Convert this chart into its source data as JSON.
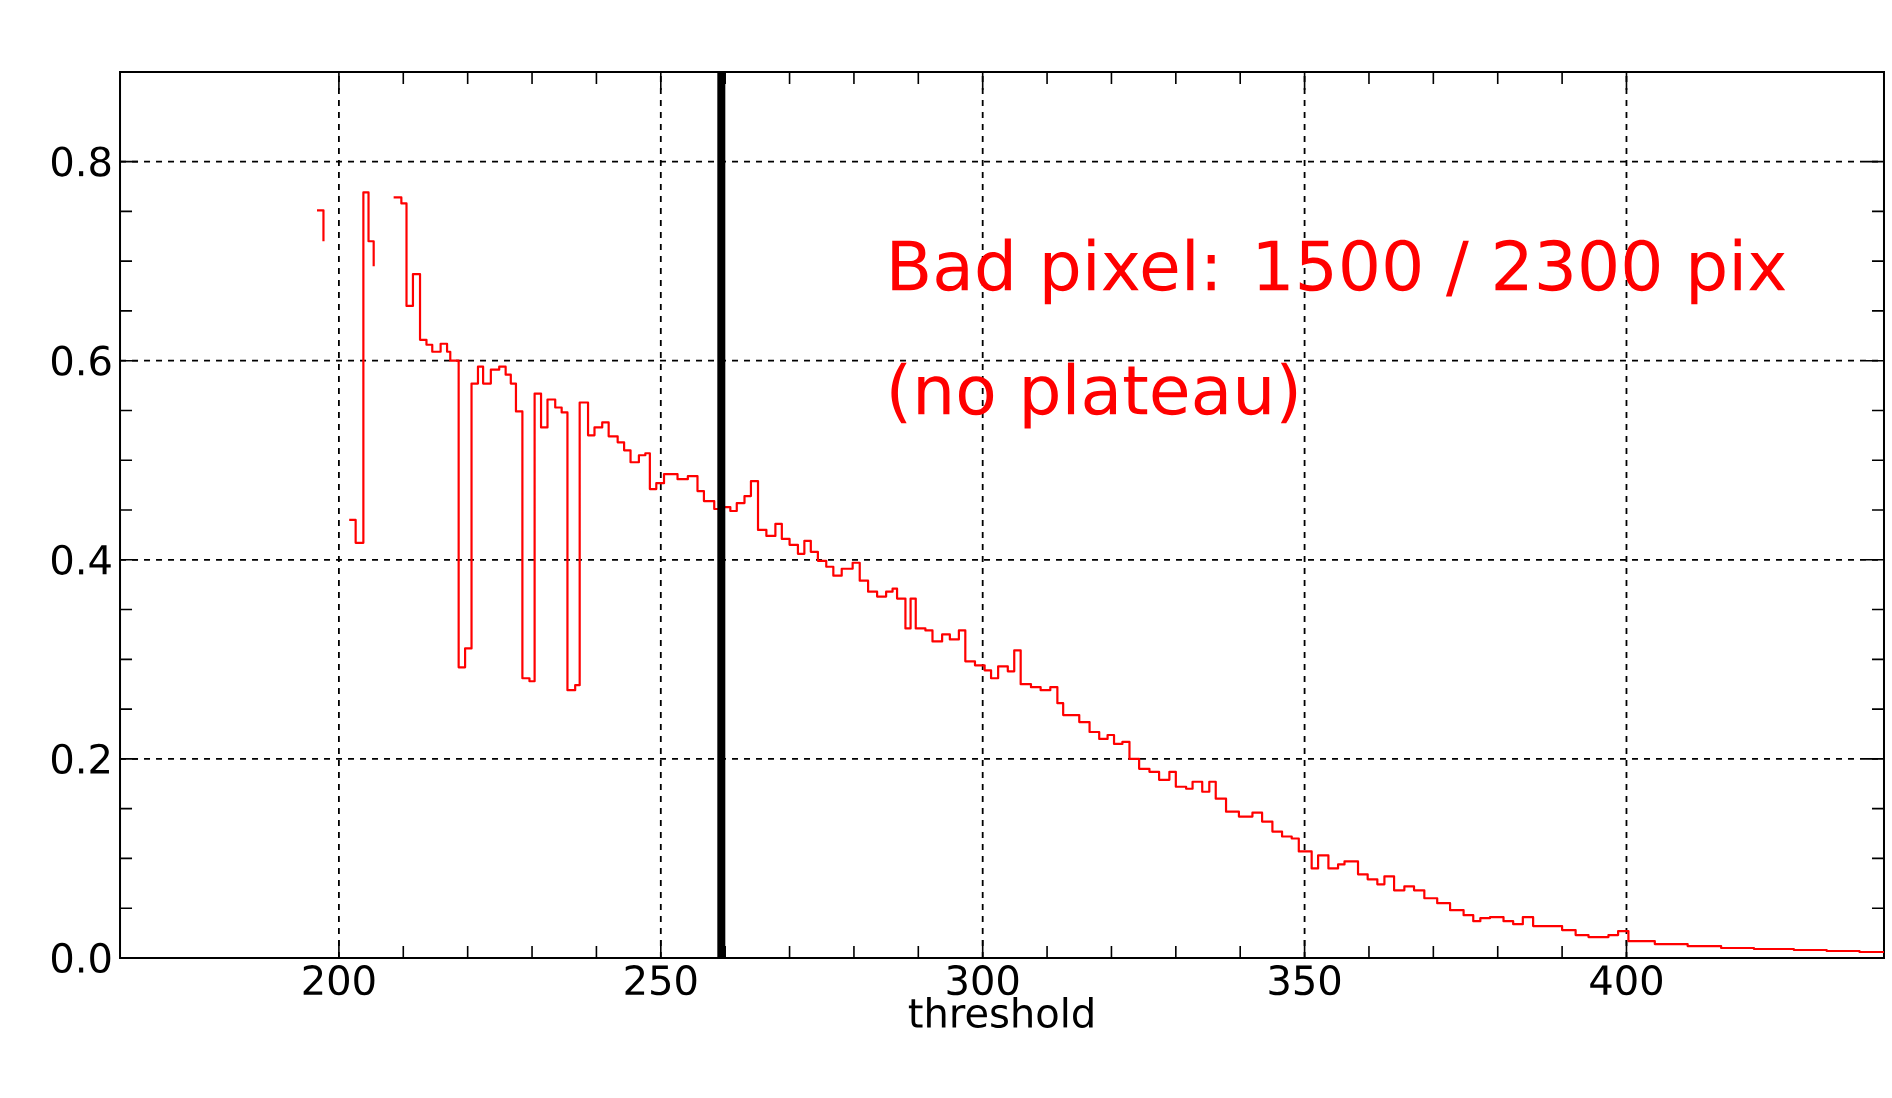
{
  "chart_data": {
    "type": "step",
    "xlabel": "threshold",
    "annotations": [
      "Bad pixel: 1500 / 2300 pix",
      "(no plateau)"
    ],
    "xlim": [
      166,
      440
    ],
    "xticks": [
      200,
      250,
      300,
      350,
      400
    ],
    "ylim": [
      0,
      0.89
    ],
    "yticks": [
      {
        "value": 0,
        "label": "0.0"
      },
      {
        "value": 0.2,
        "label": "0.2"
      },
      {
        "value": 0.4,
        "label": "0.4"
      },
      {
        "value": 0.6,
        "label": "0.6"
      },
      {
        "value": 0.8,
        "label": "0.8"
      }
    ],
    "grid": true,
    "legend": false,
    "ref_lines": [
      {
        "axis": "x",
        "value": 259.4,
        "color": "#000000"
      }
    ],
    "series": [
      {
        "color": "#ff0000",
        "x": [
          196.6,
          197.6,
          198.9,
          201.6,
          202.6,
          203.8,
          204.6,
          205.4,
          206.8,
          208.5,
          209.7,
          210.5,
          211.5,
          212.6,
          213.6,
          214.5,
          215.8,
          216.8,
          217.3,
          218.6,
          219.6,
          220.6,
          221.6,
          222.4,
          223.6,
          224.9,
          225.9,
          226.7,
          227.5,
          228.5,
          229.6,
          230.4,
          231.4,
          232.4,
          233.6,
          234.6,
          235.5,
          236.7,
          237.4,
          238.7,
          239.7,
          240.9,
          241.9,
          243.3,
          244.3,
          245.3,
          246.6,
          247.6,
          248.3,
          249.3,
          250.5,
          252.6,
          254.2,
          255.7,
          256.7,
          258.3,
          259.8,
          260.8,
          261.8,
          263.0,
          264.0,
          265.1,
          266.4,
          267.8,
          268.8,
          270.0,
          271.3,
          272.3,
          273.3,
          274.4,
          275.7,
          276.8,
          278.1,
          279.8,
          280.9,
          282.2,
          283.6,
          285.0,
          286.0,
          286.7,
          288.0,
          288.8,
          289.6,
          291.1,
          292.2,
          293.7,
          294.9,
          296.3,
          297.3,
          298.8,
          300.3,
          301.3,
          302.4,
          303.9,
          304.9,
          305.9,
          307.5,
          309.0,
          310.5,
          311.6,
          312.5,
          315.0,
          316.6,
          318.1,
          319.4,
          320.4,
          321.7,
          322.8,
          324.3,
          325.9,
          327.4,
          329.0,
          330.0,
          331.6,
          332.6,
          334.1,
          335.2,
          336.2,
          337.8,
          339.8,
          341.9,
          343.4,
          345.0,
          346.5,
          348.0,
          349.1,
          351.1,
          352.1,
          353.7,
          355.2,
          356.2,
          358.3,
          359.8,
          361.3,
          362.4,
          363.9,
          365.5,
          367.0,
          368.6,
          370.6,
          372.6,
          374.7,
          376.2,
          377.3,
          378.8,
          380.9,
          382.4,
          383.9,
          385.5,
          388.0,
          390.0,
          392.1,
          394.1,
          397.2,
          398.7,
          400.3,
          404.4,
          409.5,
          414.7,
          419.8,
          426.0,
          431.1,
          436.2,
          440
        ],
        "values": [
          0.751,
          0.72,
          null,
          0.44,
          0.417,
          0.769,
          0.72,
          0.695,
          null,
          0.764,
          0.758,
          0.655,
          0.687,
          0.621,
          0.616,
          0.609,
          0.617,
          0.609,
          0.6,
          0.292,
          0.311,
          0.577,
          0.594,
          0.577,
          0.591,
          0.594,
          0.586,
          0.577,
          0.549,
          0.281,
          0.278,
          0.567,
          0.533,
          0.561,
          0.553,
          0.548,
          0.269,
          0.274,
          0.558,
          0.525,
          0.533,
          0.538,
          0.524,
          0.518,
          0.51,
          0.498,
          0.505,
          0.507,
          0.471,
          0.477,
          0.486,
          0.481,
          0.484,
          0.469,
          0.459,
          0.451,
          0.453,
          0.449,
          0.457,
          0.464,
          0.479,
          0.43,
          0.424,
          0.436,
          0.421,
          0.415,
          0.406,
          0.419,
          0.408,
          0.399,
          0.393,
          0.384,
          0.391,
          0.397,
          0.379,
          0.368,
          0.363,
          0.368,
          0.371,
          0.361,
          0.331,
          0.361,
          0.331,
          0.329,
          0.318,
          0.325,
          0.32,
          0.329,
          0.298,
          0.294,
          0.289,
          0.281,
          0.293,
          0.288,
          0.309,
          0.275,
          0.272,
          0.269,
          0.272,
          0.256,
          0.244,
          0.237,
          0.227,
          0.22,
          0.224,
          0.215,
          0.217,
          0.2,
          0.19,
          0.187,
          0.179,
          0.187,
          0.172,
          0.17,
          0.177,
          0.167,
          0.177,
          0.16,
          0.147,
          0.142,
          0.146,
          0.137,
          0.127,
          0.122,
          0.12,
          0.107,
          0.09,
          0.103,
          0.09,
          0.094,
          0.097,
          0.084,
          0.079,
          0.074,
          0.082,
          0.068,
          0.072,
          0.068,
          0.06,
          0.055,
          0.048,
          0.043,
          0.037,
          0.04,
          0.041,
          0.037,
          0.034,
          0.041,
          0.032,
          0.032,
          0.028,
          0.023,
          0.021,
          0.023,
          0.027,
          0.017,
          0.014,
          0.012,
          0.01,
          0.009,
          0.008,
          0.007,
          0.006,
          0.006
        ]
      }
    ]
  }
}
